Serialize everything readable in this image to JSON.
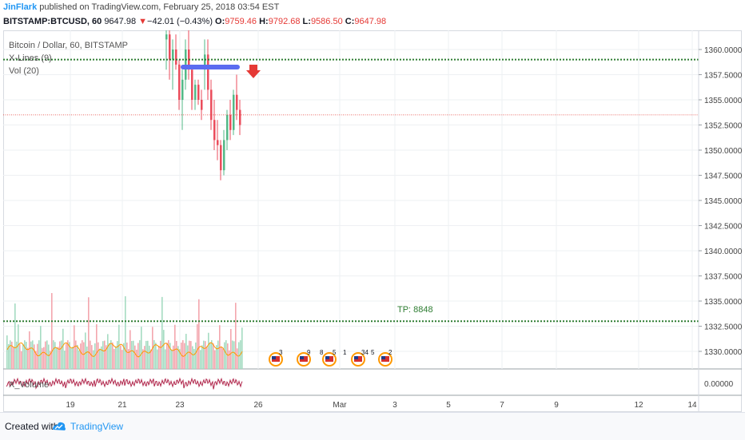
{
  "header": {
    "author": "JinFlark",
    "published_text": "published on TradingView.com, February 25, 2018 03:54 EST"
  },
  "quote": {
    "symbol": "BITSTAMP:BTCUSD, 60",
    "last": "9647.98",
    "arrow": "▼",
    "change": "−42.01 (−0.43%)",
    "o_label": "O:",
    "o": "9759.46",
    "h_label": "H:",
    "h": "9792.68",
    "l_label": "L:",
    "l": "9586.50",
    "c_label": "C:",
    "c": "9647.98"
  },
  "legend": {
    "title": "Bitcoin / Dollar, 60, BITSTAMP",
    "xlines": "X-Lines (9)",
    "vol": "Vol (20)",
    "xvolume": "X_Volume"
  },
  "annotations": {
    "tp": "TP: 8848"
  },
  "footer": {
    "created_with": "Created with",
    "brand": "TradingView"
  },
  "colors": {
    "up": "#53b987",
    "down": "#eb4d5c",
    "vol_up": "#a5dbc2",
    "vol_down": "#f3a6ae",
    "green_dotted": "#2e7d32",
    "red_dotted": "#e53935",
    "blue_bar": "#5b6cf0",
    "orange_ma": "#ff9800",
    "xvol": "#b0264b",
    "brand": "#2196f3"
  },
  "chart_data": {
    "type": "candlestick",
    "price_axis": {
      "range": [
        1327.5,
        1361.5
      ],
      "ticks": [
        "1360.00000",
        "1357.50000",
        "1355.00000",
        "1352.50000",
        "1350.00000",
        "1347.50000",
        "1345.00000",
        "1342.50000",
        "1340.00000",
        "1337.50000",
        "1335.00000",
        "1332.50000",
        "1330.00000"
      ]
    },
    "x_axis": {
      "labels": [
        "19",
        "21",
        "23",
        "26",
        "Mar",
        "3",
        "5",
        "7",
        "9",
        "12",
        "14"
      ]
    },
    "horizontal_lines": [
      {
        "kind": "green-dotted",
        "price": 1359.0
      },
      {
        "kind": "red-dotted",
        "price": 1353.5
      },
      {
        "kind": "green-dotted-tp",
        "price": 1333.0
      }
    ],
    "sub_axis": {
      "ticks": [
        "0.00000"
      ]
    },
    "event_icons": [
      {
        "label": "3"
      },
      {
        "label": "9"
      },
      {
        "label": "8"
      },
      {
        "label": "5"
      },
      {
        "label": "1"
      },
      {
        "label": "34"
      },
      {
        "label": "5"
      },
      {
        "label": "2"
      }
    ],
    "grid": true
  }
}
